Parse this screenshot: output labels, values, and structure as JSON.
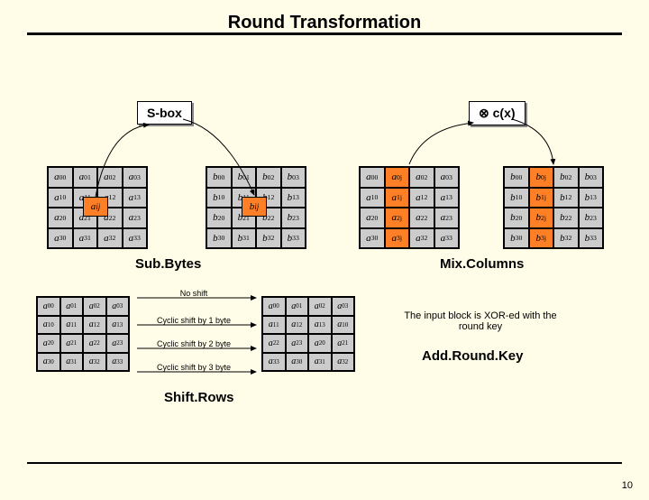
{
  "type": "diagram",
  "title": "Round Transformation",
  "colors": {
    "page_bg": "#fffce8",
    "cell_bg": "#cccccc",
    "highlight": "#ff7f27",
    "border": "#000000",
    "shadow": "#888888"
  },
  "typography": {
    "title_fontsize": 20,
    "label_fontsize": 14,
    "cell_fontsize": 11,
    "small_fontsize": 9
  },
  "sbox_label": "S-box",
  "cx_label": "⊗ c(x)",
  "overlay_a": "a<sub>ij</sub>",
  "overlay_b": "b<sub>ij</sub>",
  "grids": {
    "a_full": [
      [
        "a<sub>00</sub>",
        "a<sub>01</sub>",
        "a<sub>02</sub>",
        "a<sub>03</sub>"
      ],
      [
        "a<sub>10</sub>",
        "a<sub>11</sub>",
        "a<sub>12</sub>",
        "a<sub>13</sub>"
      ],
      [
        "a<sub>20</sub>",
        "a<sub>21</sub>",
        "a<sub>22</sub>",
        "a<sub>23</sub>"
      ],
      [
        "a<sub>30</sub>",
        "a<sub>31</sub>",
        "a<sub>32</sub>",
        "a<sub>33</sub>"
      ]
    ],
    "b_full": [
      [
        "b<sub>00</sub>",
        "b<sub>01</sub>",
        "b<sub>02</sub>",
        "b<sub>03</sub>"
      ],
      [
        "b<sub>10</sub>",
        "b<sub>11</sub>",
        "b<sub>12</sub>",
        "b<sub>13</sub>"
      ],
      [
        "b<sub>20</sub>",
        "b<sub>21</sub>",
        "b<sub>22</sub>",
        "b<sub>23</sub>"
      ],
      [
        "b<sub>30</sub>",
        "b<sub>31</sub>",
        "b<sub>32</sub>",
        "b<sub>33</sub>"
      ]
    ],
    "a_jcol": {
      "rows": [
        [
          "a<sub>00</sub>",
          "a<sub>0j</sub>",
          "a<sub>02</sub>",
          "a<sub>03</sub>"
        ],
        [
          "a<sub>10</sub>",
          "a<sub>1j</sub>",
          "a<sub>12</sub>",
          "a<sub>13</sub>"
        ],
        [
          "a<sub>20</sub>",
          "a<sub>2j</sub>",
          "a<sub>22</sub>",
          "a<sub>23</sub>"
        ],
        [
          "a<sub>30</sub>",
          "a<sub>3j</sub>",
          "a<sub>32</sub>",
          "a<sub>33</sub>"
        ]
      ],
      "highlight_col": 1
    },
    "b_jcol": {
      "rows": [
        [
          "b<sub>00</sub>",
          "b<sub>0j</sub>",
          "b<sub>02</sub>",
          "b<sub>03</sub>"
        ],
        [
          "b<sub>10</sub>",
          "b<sub>1j</sub>",
          "b<sub>12</sub>",
          "b<sub>13</sub>"
        ],
        [
          "b<sub>20</sub>",
          "b<sub>2j</sub>",
          "b<sub>22</sub>",
          "b<sub>23</sub>"
        ],
        [
          "b<sub>30</sub>",
          "b<sub>3j</sub>",
          "b<sub>32</sub>",
          "b<sub>33</sub>"
        ]
      ],
      "highlight_col": 1
    },
    "shift_out": [
      [
        "a<sub>00</sub>",
        "a<sub>01</sub>",
        "a<sub>02</sub>",
        "a<sub>03</sub>"
      ],
      [
        "a<sub>11</sub>",
        "a<sub>12</sub>",
        "a<sub>13</sub>",
        "a<sub>10</sub>"
      ],
      [
        "a<sub>22</sub>",
        "a<sub>23</sub>",
        "a<sub>20</sub>",
        "a<sub>21</sub>"
      ],
      [
        "a<sub>33</sub>",
        "a<sub>30</sub>",
        "a<sub>31</sub>",
        "a<sub>32</sub>"
      ]
    ]
  },
  "section_labels": {
    "subbytes": "Sub.Bytes",
    "mixcolumns": "Mix.Columns",
    "shiftrows": "Shift.Rows",
    "addroundkey": "Add.Round.Key"
  },
  "shift_annotations": [
    "No shift",
    "Cyclic shift by 1 byte",
    "Cyclic shift by 2 byte",
    "Cyclic shift by 3 byte"
  ],
  "roundkey_text": "The input block is XOR-ed with the round key",
  "page_number": "10"
}
